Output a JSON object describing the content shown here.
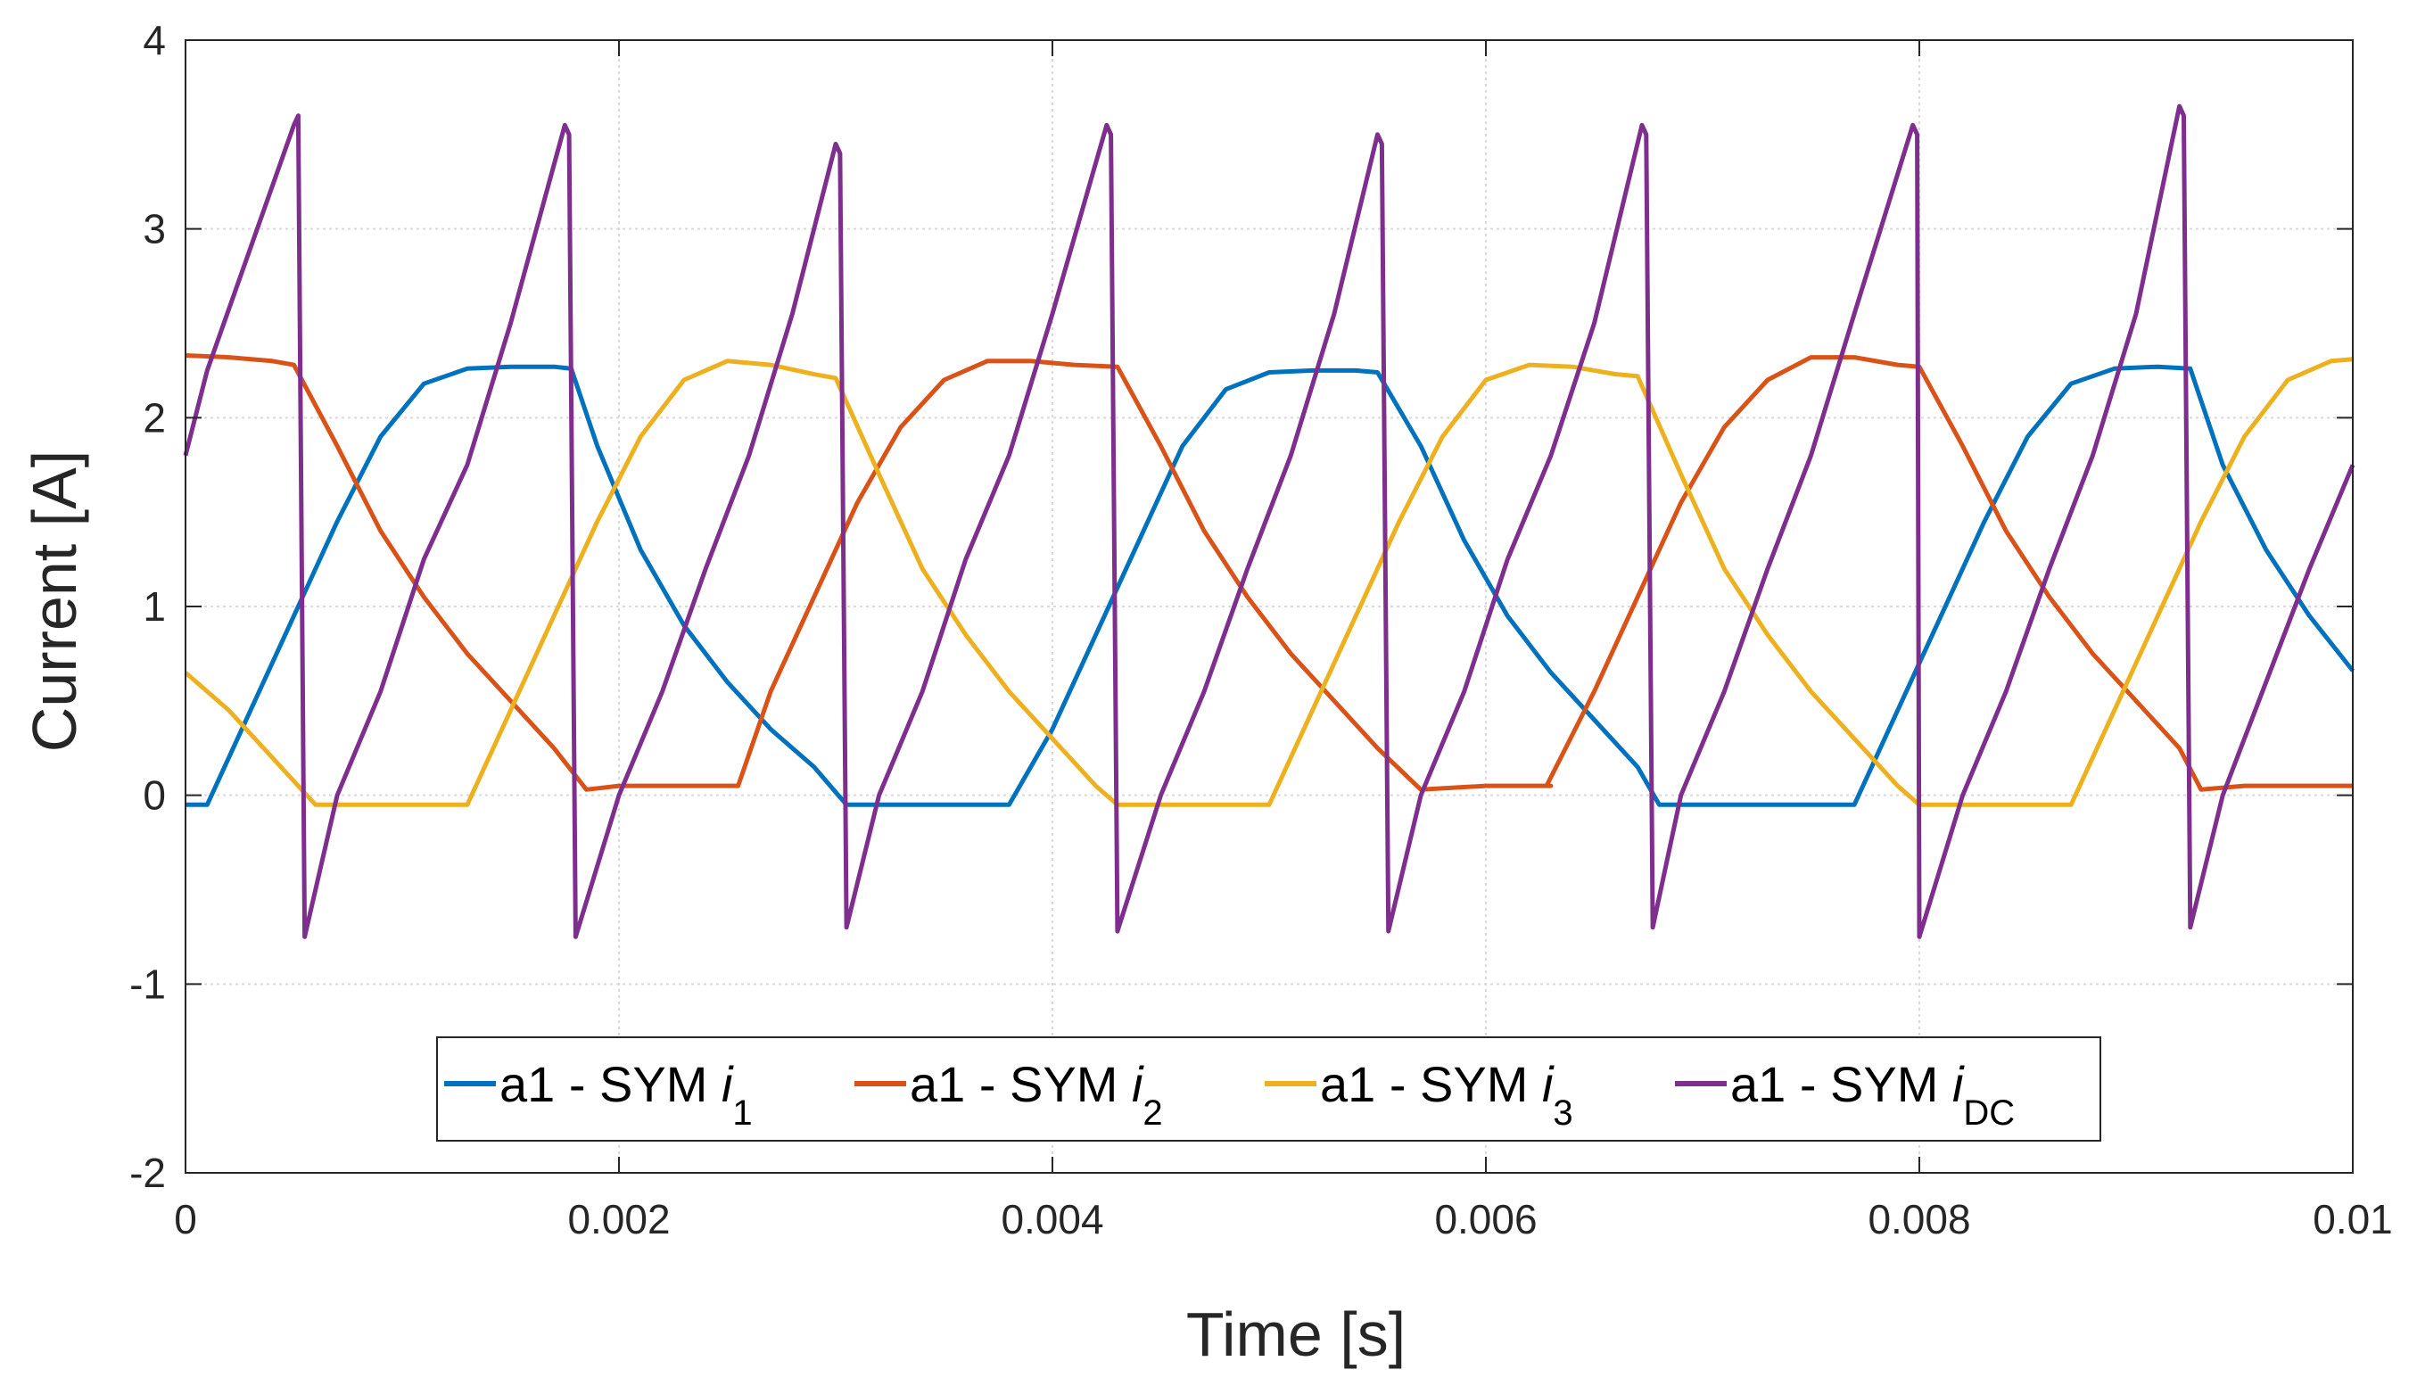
{
  "chart_data": {
    "type": "line",
    "title": "",
    "xlabel": "Time  [s]",
    "ylabel": "Current [A]",
    "xlim": [
      0,
      0.01
    ],
    "ylim": [
      -2,
      4
    ],
    "grid": true,
    "legend_position": "bottom-center",
    "x_ticks": [
      0,
      0.002,
      0.004,
      0.006,
      0.008,
      0.01
    ],
    "x_tick_labels": [
      "0",
      "0.002",
      "0.004",
      "0.006",
      "0.008",
      "0.01"
    ],
    "y_ticks": [
      -2,
      -1,
      0,
      1,
      2,
      3,
      4
    ],
    "y_tick_labels": [
      "-2",
      "-1",
      "0",
      "1",
      "2",
      "3",
      "4"
    ],
    "series": [
      {
        "name": "a1 - SYM i1",
        "label_main": "a1 - SYM ",
        "label_italic": "i",
        "label_sub": "1",
        "color": "#0072BD",
        "x": [
          0,
          0.0001,
          0.0003,
          0.0005,
          0.0007,
          0.0009,
          0.0011,
          0.0013,
          0.0015,
          0.0017,
          0.00178,
          0.0019,
          0.0021,
          0.0023,
          0.0025,
          0.0027,
          0.0029,
          0.00305,
          0.0032,
          0.0035,
          0.0038,
          0.004,
          0.0042,
          0.0044,
          0.0046,
          0.0048,
          0.005,
          0.0052,
          0.0054,
          0.0055,
          0.0057,
          0.0059,
          0.0061,
          0.0063,
          0.0065,
          0.0067,
          0.0068,
          0.007,
          0.0073,
          0.0075,
          0.0077,
          0.0079,
          0.0081,
          0.0083,
          0.0085,
          0.0087,
          0.0089,
          0.0091,
          0.00925,
          0.0094,
          0.0096,
          0.0098,
          0.01
        ],
        "y": [
          -0.05,
          -0.05,
          0.45,
          0.95,
          1.45,
          1.9,
          2.18,
          2.26,
          2.27,
          2.27,
          2.26,
          1.85,
          1.3,
          0.9,
          0.6,
          0.35,
          0.15,
          -0.05,
          -0.05,
          -0.05,
          -0.05,
          0.35,
          0.85,
          1.35,
          1.85,
          2.15,
          2.24,
          2.25,
          2.25,
          2.24,
          1.85,
          1.35,
          0.95,
          0.65,
          0.4,
          0.15,
          -0.05,
          -0.05,
          -0.05,
          -0.05,
          -0.05,
          0.45,
          0.95,
          1.45,
          1.9,
          2.18,
          2.26,
          2.27,
          2.26,
          1.75,
          1.3,
          0.95,
          0.66
        ]
      },
      {
        "name": "a1 - SYM i2",
        "label_main": "a1 - SYM ",
        "label_italic": "i",
        "label_sub": "2",
        "color": "#D95319",
        "x": [
          0,
          0.0002,
          0.0004,
          0.0005,
          0.0007,
          0.0009,
          0.0011,
          0.0013,
          0.0015,
          0.0017,
          0.00185,
          0.002,
          0.0023,
          0.00255,
          0.0027,
          0.0029,
          0.0031,
          0.0033,
          0.0035,
          0.0037,
          0.0039,
          0.0041,
          0.0043,
          0.0045,
          0.0047,
          0.0049,
          0.0051,
          0.0053,
          0.0055,
          0.0057,
          0.006,
          0.0063,
          0.00628,
          0.0065,
          0.0067,
          0.0069,
          0.0071,
          0.0073,
          0.0075,
          0.0077,
          0.0079,
          0.008,
          0.0082,
          0.0084,
          0.0086,
          0.0088,
          0.009,
          0.0092,
          0.0093,
          0.0095,
          0.0098,
          0.01
        ],
        "y": [
          2.33,
          2.32,
          2.3,
          2.28,
          1.85,
          1.4,
          1.05,
          0.75,
          0.5,
          0.25,
          0.03,
          0.05,
          0.05,
          0.05,
          0.55,
          1.05,
          1.55,
          1.95,
          2.2,
          2.3,
          2.3,
          2.28,
          2.27,
          1.85,
          1.4,
          1.05,
          0.75,
          0.5,
          0.25,
          0.03,
          0.05,
          0.05,
          0.05,
          0.55,
          1.05,
          1.55,
          1.95,
          2.2,
          2.32,
          2.32,
          2.28,
          2.27,
          1.85,
          1.4,
          1.05,
          0.75,
          0.5,
          0.25,
          0.03,
          0.05,
          0.05,
          0.05
        ]
      },
      {
        "name": "a1 - SYM i3",
        "label_main": "a1 - SYM ",
        "label_italic": "i",
        "label_sub": "3",
        "color": "#EDB120",
        "x": [
          0,
          0.0002,
          0.0004,
          0.0006,
          0.0008,
          0.001,
          0.0013,
          0.0015,
          0.0017,
          0.0019,
          0.0021,
          0.0023,
          0.0025,
          0.0027,
          0.0029,
          0.003,
          0.0032,
          0.0034,
          0.0036,
          0.0038,
          0.004,
          0.0042,
          0.0043,
          0.0045,
          0.0048,
          0.005,
          0.0052,
          0.0054,
          0.0056,
          0.0058,
          0.006,
          0.0062,
          0.0064,
          0.0066,
          0.0067,
          0.0069,
          0.0071,
          0.0073,
          0.0075,
          0.0077,
          0.0079,
          0.008,
          0.0083,
          0.0085,
          0.0087,
          0.0089,
          0.0091,
          0.0093,
          0.0095,
          0.0097,
          0.0099,
          0.01
        ],
        "y": [
          0.65,
          0.45,
          0.2,
          -0.05,
          -0.05,
          -0.05,
          -0.05,
          0.45,
          0.95,
          1.45,
          1.9,
          2.2,
          2.3,
          2.28,
          2.23,
          2.21,
          1.7,
          1.2,
          0.85,
          0.55,
          0.3,
          0.05,
          -0.05,
          -0.05,
          -0.05,
          -0.05,
          0.45,
          0.95,
          1.45,
          1.9,
          2.2,
          2.28,
          2.27,
          2.23,
          2.22,
          1.7,
          1.2,
          0.85,
          0.55,
          0.3,
          0.05,
          -0.05,
          -0.05,
          -0.05,
          -0.05,
          0.45,
          0.95,
          1.45,
          1.9,
          2.2,
          2.3,
          2.31
        ]
      },
      {
        "name": "a1 - SYM iDC",
        "label_main": "a1 - SYM ",
        "label_italic": "i",
        "label_sub": "DC",
        "color": "#7E2F8E",
        "x": [
          0,
          0.0001,
          0.0003,
          0.0005,
          0.00052,
          0.00055,
          0.0007,
          0.0009,
          0.0011,
          0.0013,
          0.0015,
          0.00175,
          0.00177,
          0.0018,
          0.002,
          0.0022,
          0.0024,
          0.0026,
          0.0028,
          0.003,
          0.00302,
          0.00305,
          0.0032,
          0.0034,
          0.0036,
          0.0038,
          0.004,
          0.00425,
          0.00427,
          0.0043,
          0.0045,
          0.0047,
          0.0049,
          0.0051,
          0.0053,
          0.0055,
          0.00552,
          0.00555,
          0.0057,
          0.0059,
          0.0061,
          0.0063,
          0.0065,
          0.00672,
          0.00674,
          0.00677,
          0.0069,
          0.0071,
          0.0073,
          0.0075,
          0.0077,
          0.00797,
          0.00799,
          0.008,
          0.0082,
          0.0084,
          0.0086,
          0.0088,
          0.009,
          0.0092,
          0.00922,
          0.00925,
          0.0094,
          0.0096,
          0.0098,
          0.01
        ],
        "y": [
          1.8,
          2.25,
          2.9,
          3.55,
          3.6,
          -0.75,
          0.0,
          0.55,
          1.25,
          1.75,
          2.5,
          3.55,
          3.5,
          -0.75,
          0.0,
          0.55,
          1.2,
          1.8,
          2.55,
          3.45,
          3.4,
          -0.7,
          0.0,
          0.55,
          1.25,
          1.8,
          2.55,
          3.55,
          3.5,
          -0.72,
          0.0,
          0.55,
          1.2,
          1.8,
          2.55,
          3.5,
          3.45,
          -0.72,
          0.0,
          0.55,
          1.25,
          1.8,
          2.5,
          3.55,
          3.5,
          -0.7,
          0.0,
          0.55,
          1.2,
          1.8,
          2.55,
          3.55,
          3.5,
          -0.75,
          0.0,
          0.55,
          1.2,
          1.8,
          2.55,
          3.65,
          3.6,
          -0.7,
          0.0,
          0.6,
          1.2,
          1.75
        ]
      }
    ]
  }
}
